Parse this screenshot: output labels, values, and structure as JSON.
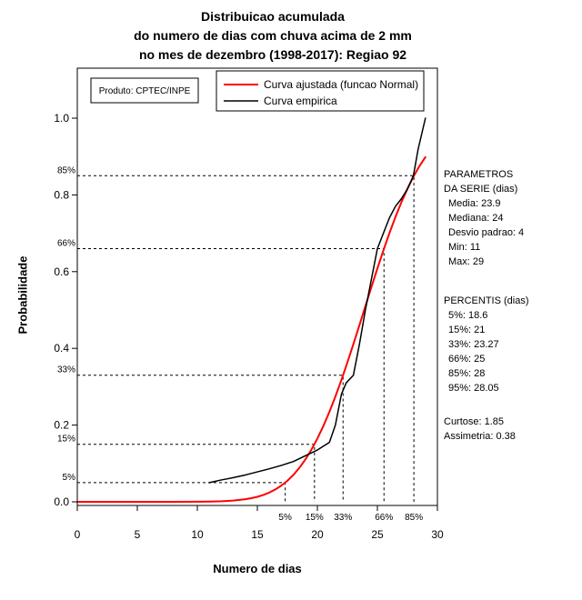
{
  "title_lines": [
    "Distribuicao acumulada",
    "do numero de dias com chuva acima de 2 mm",
    "no mes de dezembro (1998-2017): Regiao 92"
  ],
  "axes": {
    "x_label": "Numero de dias",
    "y_label": "Probabilidade"
  },
  "side_panel": {
    "params_title_1": "PARAMETROS",
    "params_title_2": "DA SERIE (dias)",
    "params_lines": [
      "Media: 23.9",
      "Mediana: 24",
      "Desvio padrao: 4",
      "Min: 11",
      "Max: 29"
    ],
    "percentis_title": "PERCENTIS (dias)",
    "percentis_lines": [
      "5%: 18.6",
      "15%: 21",
      "33%: 23.27",
      "66%: 25",
      "85%: 28",
      "95%: 28.05"
    ],
    "extra_lines": [
      "Curtose: 1.85",
      "Assimetria: 0.38"
    ]
  },
  "chart_data": {
    "type": "line",
    "title": "Distribuicao acumulada do numero de dias com chuva acima de 2 mm no mes de dezembro (1998-2017): Regiao 92",
    "xlabel": "Numero de dias",
    "ylabel": "Probabilidade",
    "xlim": [
      0,
      30
    ],
    "ylim": [
      0,
      1
    ],
    "x_ticks": [
      0,
      5,
      10,
      15,
      20,
      25,
      30
    ],
    "x_tick_labels": [
      "0",
      "5",
      "10",
      "15",
      "20",
      "25",
      "30"
    ],
    "y_ticks": [
      0.0,
      0.2,
      0.4,
      0.6,
      0.8,
      1.0
    ],
    "y_tick_labels": [
      "0.0",
      "0.2",
      "0.4",
      "0.6",
      "0.8",
      "1.0"
    ],
    "grid": false,
    "legend_position": "top-center-inside",
    "note": "Produto: CPTEC/INPE",
    "series": [
      {
        "name": "Curva ajustada (funcao Normal)",
        "color": "#FF0000",
        "points": [
          [
            0,
            0
          ],
          [
            5,
            0
          ],
          [
            8,
            0
          ],
          [
            10,
            0.0003
          ],
          [
            11,
            0.0006
          ],
          [
            12,
            0.0015
          ],
          [
            13,
            0.0032
          ],
          [
            14,
            0.0067
          ],
          [
            14.5,
            0.0094
          ],
          [
            15,
            0.013
          ],
          [
            15.5,
            0.0179
          ],
          [
            16,
            0.0242
          ],
          [
            16.5,
            0.0322
          ],
          [
            17,
            0.0423
          ],
          [
            17.5,
            0.0548
          ],
          [
            18,
            0.0701
          ],
          [
            18.5,
            0.0885
          ],
          [
            19,
            0.1103
          ],
          [
            19.5,
            0.1357
          ],
          [
            20,
            0.1648
          ],
          [
            20.5,
            0.1977
          ],
          [
            21,
            0.2343
          ],
          [
            21.5,
            0.2743
          ],
          [
            22,
            0.3174
          ],
          [
            22.5,
            0.3632
          ],
          [
            23,
            0.411
          ],
          [
            23.5,
            0.4602
          ],
          [
            24,
            0.51
          ],
          [
            24.5,
            0.5596
          ],
          [
            25,
            0.6083
          ],
          [
            25.5,
            0.6554
          ],
          [
            26,
            0.7002
          ],
          [
            26.5,
            0.7422
          ],
          [
            27,
            0.7808
          ],
          [
            27.5,
            0.8159
          ],
          [
            28,
            0.8473
          ],
          [
            28.5,
            0.8749
          ],
          [
            29,
            0.8986
          ]
        ]
      },
      {
        "name": "Curva empirica",
        "color": "#000000",
        "points": [
          [
            11,
            0.05
          ],
          [
            12,
            0.057
          ],
          [
            13,
            0.063
          ],
          [
            14,
            0.07
          ],
          [
            15,
            0.078
          ],
          [
            16,
            0.086
          ],
          [
            17,
            0.095
          ],
          [
            18,
            0.105
          ],
          [
            19,
            0.12
          ],
          [
            20,
            0.135
          ],
          [
            21,
            0.155
          ],
          [
            21.5,
            0.2
          ],
          [
            22,
            0.28
          ],
          [
            22.4,
            0.31
          ],
          [
            23,
            0.33
          ],
          [
            23.5,
            0.41
          ],
          [
            24,
            0.5
          ],
          [
            24.5,
            0.58
          ],
          [
            25,
            0.66
          ],
          [
            25.5,
            0.7
          ],
          [
            26,
            0.74
          ],
          [
            26.5,
            0.77
          ],
          [
            27,
            0.79
          ],
          [
            27.5,
            0.815
          ],
          [
            28,
            0.85
          ],
          [
            28.4,
            0.92
          ],
          [
            28.7,
            0.96
          ],
          [
            29,
            1.0
          ]
        ]
      }
    ],
    "guides": [
      {
        "label": "5%",
        "p": 0.05,
        "x": 17.32
      },
      {
        "label": "15%",
        "p": 0.15,
        "x": 19.76
      },
      {
        "label": "33%",
        "p": 0.33,
        "x": 22.14
      },
      {
        "label": "66%",
        "p": 0.66,
        "x": 25.55
      },
      {
        "label": "85%",
        "p": 0.85,
        "x": 28.04
      }
    ],
    "stats": {
      "media": 23.9,
      "mediana": 24,
      "desvio_padrao": 4,
      "min": 11,
      "max": 29,
      "percentis": {
        "5%": 18.6,
        "15%": 21,
        "33%": 23.27,
        "66%": 25,
        "85%": 28,
        "95%": 28.05
      },
      "curtose": 1.85,
      "assimetria": 0.38
    }
  }
}
